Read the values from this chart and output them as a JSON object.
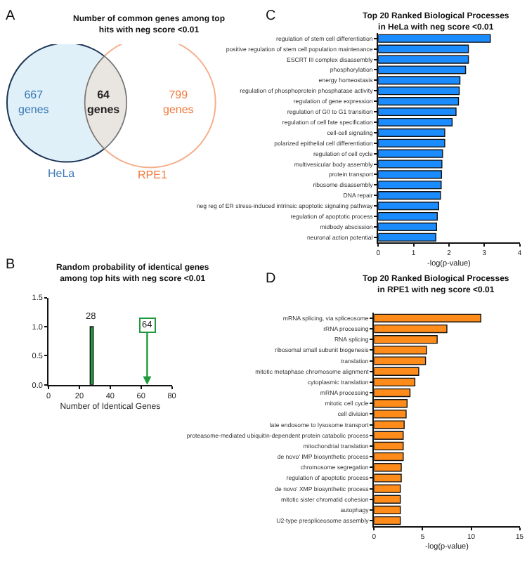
{
  "chart_data": [
    {
      "type": "other",
      "title": "Number of common genes among top hits with neg score <0.01",
      "categories": [
        "HeLa",
        null,
        "RPE1"
      ],
      "values": [
        667,
        64,
        799
      ],
      "value_labels": [
        "667 genes",
        "64 genes",
        "799 genes"
      ],
      "colors": [
        "#dff0f9",
        "#e9e6e2",
        "#ffffff"
      ],
      "annotations": [
        "A"
      ]
    },
    {
      "type": "bar",
      "title": "Random probability of identical genes among top hits with neg score <0.01",
      "xlabel": "Number of Identical Genes",
      "x": [
        28
      ],
      "values": [
        1
      ],
      "color": "#1f9a3c",
      "xlim": [
        0,
        80
      ],
      "xticks": [
        0,
        20,
        40,
        60,
        80
      ],
      "ylim": [
        0,
        1.5
      ],
      "yticks": [
        {
          "value": 0,
          "label": "0.0"
        },
        {
          "value": 0.5,
          "label": "0.5"
        },
        {
          "value": 1,
          "label": "1.0"
        },
        {
          "value": 1.5,
          "label": "1.5"
        }
      ],
      "annotations": [
        "B",
        {
          "text": "28",
          "x": 28,
          "y": 1
        },
        "64"
      ]
    },
    {
      "type": "bar",
      "orientation": "horizontal",
      "title": "Top 20 Ranked Biological Processes in HeLa with neg score <0.01",
      "xlabel": "-log(p-value)",
      "color": "#1a8cff",
      "xlim": [
        0,
        4
      ],
      "xticks": [
        0,
        1,
        2,
        3,
        4
      ],
      "annotations": [
        "C"
      ],
      "categories": [
        "regulation of stem cell differentiation",
        "positive regulation of stem cell population maintenance",
        "ESCRT III complex disassembly",
        "phosphorylation",
        "energy homeostasis",
        "regulation of phosphoprotein phosphatase activity",
        "regulation of gene expression",
        "regulation of G0 to G1 transition",
        "regulation of cell fate specification",
        "cell-cell signaling",
        "polarized epithelial cell differentiation",
        "regulation of cell cycle",
        "multivesicular body assembly",
        "protein transport",
        "ribosome disassembly",
        "DNA repair",
        "neg reg of ER stress-induced intrinsic apoptotic signaling pathway",
        "regulation of apoptotic process",
        "midbody abscission",
        "neuronal action potential"
      ],
      "values": [
        3.17,
        2.55,
        2.55,
        2.47,
        2.31,
        2.29,
        2.27,
        2.2,
        2.09,
        1.88,
        1.88,
        1.82,
        1.8,
        1.79,
        1.78,
        1.76,
        1.71,
        1.67,
        1.65,
        1.63
      ]
    },
    {
      "type": "bar",
      "orientation": "horizontal",
      "title": "Top 20 Ranked Biological Processes in RPE1 with neg score <0.01",
      "xlabel": "-log(p-value)",
      "color": "#ff8c1a",
      "xlim": [
        0,
        15
      ],
      "xticks": [
        0,
        5,
        10,
        15
      ],
      "annotations": [
        "D"
      ],
      "categories": [
        "mRNA splicing, via spliceosome",
        "rRNA processing",
        "RNA splicing",
        "ribosomal small subunit biogenesis",
        "translation",
        "mitotic metaphase chromosome alignment",
        "cytoplasmic translation",
        "mRNA processing",
        "mitotic cell cycle",
        "cell division",
        "late endosome to lysosome transport",
        "proteasome-mediated ubiquitin-dependent protein catabolic process",
        "mitochondrial translation",
        "de novo' IMP biosynthetic process",
        "chromosome segregation",
        "regulation of apoptotic process",
        "de novo' XMP biosynthetic process",
        "mitotic sister chromatid cohesion",
        "autophagy",
        "U2-type prespliceosome assembly"
      ],
      "values": [
        11.0,
        7.5,
        6.5,
        5.4,
        5.3,
        4.6,
        4.2,
        3.7,
        3.4,
        3.3,
        3.1,
        3.0,
        3.0,
        3.0,
        2.8,
        2.8,
        2.7,
        2.7,
        2.7,
        2.7
      ]
    }
  ]
}
